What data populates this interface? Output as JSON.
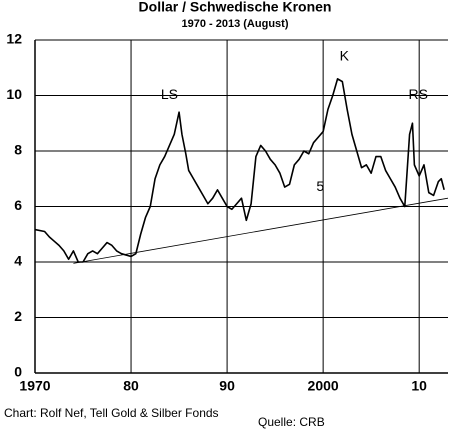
{
  "chart_data": {
    "type": "line",
    "title": "Dollar / Schwedische Kronen",
    "subtitle": "1970 - 2013 (August)",
    "x": [
      1970,
      1971,
      1971.5,
      1972,
      1972.5,
      1973,
      1973.5,
      1974,
      1974.5,
      1975,
      1975.5,
      1976,
      1976.5,
      1977,
      1977.5,
      1978,
      1978.5,
      1979,
      1979.5,
      1980,
      1980.5,
      1981,
      1981.5,
      1982,
      1982.5,
      1983,
      1983.5,
      1984,
      1984.5,
      1985,
      1985.3,
      1985.7,
      1986,
      1986.5,
      1987,
      1987.5,
      1988,
      1988.5,
      1989,
      1989.5,
      1990,
      1990.5,
      1991,
      1991.5,
      1992,
      1992.5,
      1993,
      1993.5,
      1994,
      1994.5,
      1995,
      1995.5,
      1996,
      1996.5,
      1997,
      1997.5,
      1998,
      1998.5,
      1999,
      1999.5,
      2000,
      2000.5,
      2001,
      2001.5,
      2002,
      2002.5,
      2003,
      2003.5,
      2004,
      2004.5,
      2005,
      2005.5,
      2006,
      2006.5,
      2007,
      2007.5,
      2008,
      2008.5,
      2009,
      2009.3,
      2009.5,
      2010,
      2010.5,
      2011,
      2011.5,
      2012,
      2012.3,
      2012.6
    ],
    "series": [
      {
        "color": "#000000",
        "values": [
          5.17,
          5.1,
          4.9,
          4.75,
          4.6,
          4.4,
          4.1,
          4.4,
          4.0,
          4.0,
          4.3,
          4.4,
          4.3,
          4.5,
          4.7,
          4.6,
          4.4,
          4.3,
          4.25,
          4.2,
          4.3,
          5.0,
          5.6,
          6.0,
          7.0,
          7.5,
          7.8,
          8.2,
          8.6,
          9.4,
          8.6,
          7.9,
          7.3,
          7.0,
          6.7,
          6.4,
          6.1,
          6.3,
          6.6,
          6.3,
          6.0,
          5.9,
          6.1,
          6.3,
          5.5,
          6.1,
          7.8,
          8.2,
          8.0,
          7.7,
          7.5,
          7.2,
          6.7,
          6.8,
          7.5,
          7.7,
          8.0,
          7.9,
          8.3,
          8.5,
          8.7,
          9.5,
          10.0,
          10.6,
          10.5,
          9.5,
          8.6,
          8.0,
          7.4,
          7.5,
          7.2,
          7.8,
          7.8,
          7.3,
          7.0,
          6.7,
          6.3,
          6.0,
          8.6,
          9.0,
          7.5,
          7.1,
          7.5,
          6.5,
          6.4,
          6.9,
          7.0,
          6.6
        ]
      }
    ],
    "trend_line": {
      "x": [
        1974,
        2013
      ],
      "values": [
        3.95,
        6.3
      ]
    },
    "xlim": [
      1970,
      2013
    ],
    "xticks": [
      1970,
      {
        "value": 1980,
        "label": "80"
      },
      {
        "value": 1990,
        "label": "90"
      },
      2000,
      {
        "value": 2010,
        "label": "10"
      }
    ],
    "ylim": [
      0,
      12
    ],
    "yticks": [
      0,
      2,
      4,
      6,
      8,
      10,
      12
    ],
    "grid": true,
    "annotations": [
      {
        "text": "LS",
        "x": 1984,
        "y": 10
      },
      {
        "text": "K",
        "x": 2002.2,
        "y": 11.4
      },
      {
        "text": "RS",
        "x": 2009.9,
        "y": 10
      },
      {
        "text": "5",
        "x": 1999.7,
        "y": 6.7
      }
    ],
    "footer_left": "Chart: Rolf Nef, Tell Gold & Silber Fonds",
    "footer_right": "Quelle: CRB"
  }
}
